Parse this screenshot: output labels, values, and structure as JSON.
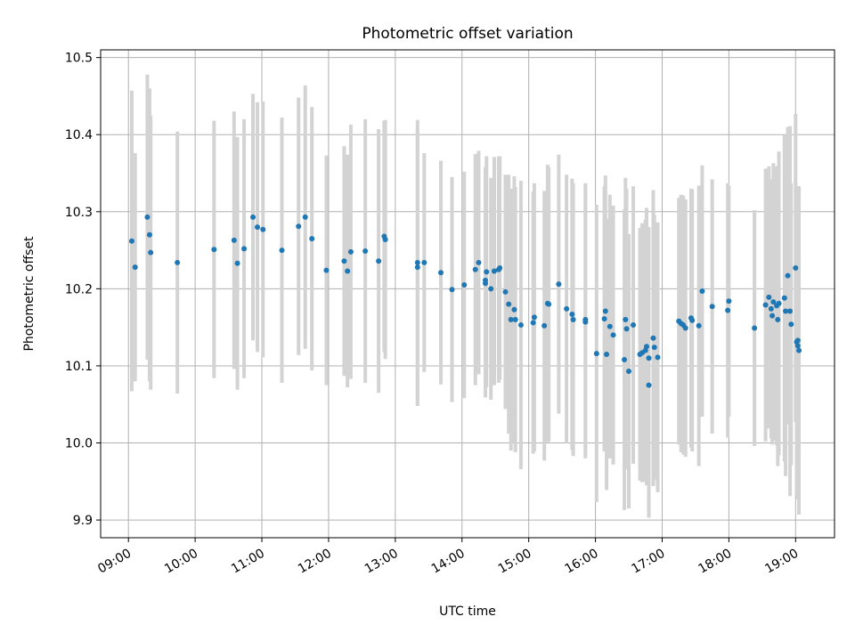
{
  "chart_data": {
    "type": "scatter",
    "title": "Photometric offset variation",
    "xlabel": "UTC time",
    "ylabel": "Photometric offset",
    "x_tick_labels": [
      "09:00",
      "10:00",
      "11:00",
      "12:00",
      "13:00",
      "14:00",
      "15:00",
      "16:00",
      "17:00",
      "18:00",
      "19:00"
    ],
    "y_tick_labels": [
      "9.9",
      "10.0",
      "10.1",
      "10.2",
      "10.3",
      "10.4",
      "10.5"
    ],
    "xlim": [
      "08:35",
      "19:35"
    ],
    "ylim": [
      9.877,
      10.51
    ],
    "grid": true,
    "marker_color": "#1f77b4",
    "errorbar_color": "#d3d3d3",
    "series": [
      {
        "x": [
          "09:03",
          "09:06",
          "09:17",
          "09:19",
          "09:20",
          "09:44",
          "10:17",
          "10:35",
          "10:38",
          "10:44",
          "10:52",
          "10:56",
          "11:01",
          "11:18",
          "11:33",
          "11:39",
          "11:45",
          "11:58",
          "12:14",
          "12:17",
          "12:20",
          "12:33",
          "12:45",
          "12:50",
          "12:51",
          "13:20",
          "13:20",
          "13:26",
          "13:41",
          "13:51",
          "14:02",
          "14:12",
          "14:15",
          "14:21",
          "14:21",
          "14:22",
          "14:26",
          "14:29",
          "14:33",
          "14:34",
          "14:39",
          "14:42",
          "14:44",
          "14:47",
          "14:48",
          "14:53",
          "15:04",
          "15:05",
          "15:14",
          "15:17",
          "15:18",
          "15:27",
          "15:34",
          "15:39",
          "15:40",
          "15:51",
          "15:51",
          "16:01",
          "16:08",
          "16:09",
          "16:10",
          "16:13",
          "16:16",
          "16:26",
          "16:27",
          "16:28",
          "16:30",
          "16:34",
          "16:40",
          "16:42",
          "16:45",
          "16:46",
          "16:48",
          "16:48",
          "16:52",
          "16:53",
          "16:56",
          "17:15",
          "17:17",
          "17:19",
          "17:21",
          "17:26",
          "17:27",
          "17:33",
          "17:36",
          "17:45",
          "17:59",
          "18:00",
          "18:23",
          "18:33",
          "18:36",
          "18:38",
          "18:39",
          "18:40",
          "18:43",
          "18:44",
          "18:45",
          "18:50",
          "18:51",
          "18:53",
          "18:55",
          "18:56",
          "19:00",
          "19:01",
          "19:02",
          "19:02",
          "19:03"
        ],
        "y": [
          10.262,
          10.228,
          10.293,
          10.27,
          10.247,
          10.234,
          10.251,
          10.263,
          10.233,
          10.252,
          10.293,
          10.28,
          10.277,
          10.25,
          10.281,
          10.293,
          10.265,
          10.224,
          10.236,
          10.223,
          10.248,
          10.249,
          10.236,
          10.268,
          10.264,
          10.234,
          10.228,
          10.234,
          10.221,
          10.199,
          10.205,
          10.225,
          10.234,
          10.211,
          10.207,
          10.222,
          10.2,
          10.223,
          10.225,
          10.227,
          10.196,
          10.18,
          10.16,
          10.173,
          10.16,
          10.153,
          10.156,
          10.163,
          10.152,
          10.181,
          10.18,
          10.206,
          10.174,
          10.167,
          10.16,
          10.16,
          10.157,
          10.116,
          10.161,
          10.171,
          10.115,
          10.151,
          10.14,
          10.108,
          10.16,
          10.148,
          10.093,
          10.153,
          10.115,
          10.117,
          10.12,
          10.125,
          10.075,
          10.11,
          10.136,
          10.124,
          10.111,
          10.158,
          10.155,
          10.153,
          10.149,
          10.162,
          10.159,
          10.152,
          10.197,
          10.177,
          10.172,
          10.184,
          10.149,
          10.179,
          10.189,
          10.174,
          10.165,
          10.183,
          10.178,
          10.16,
          10.181,
          10.188,
          10.171,
          10.217,
          10.171,
          10.154,
          10.227,
          10.131,
          10.133,
          10.126,
          10.12
        ],
        "err": [
          0.195,
          0.148,
          0.185,
          0.19,
          0.178,
          0.17,
          0.167,
          0.167,
          0.164,
          0.168,
          0.16,
          0.162,
          0.166,
          0.172,
          0.167,
          0.171,
          0.171,
          0.149,
          0.149,
          0.151,
          0.165,
          0.171,
          0.171,
          0.15,
          0.155,
          0.185,
          0.18,
          0.142,
          0.145,
          0.146,
          0.147,
          0.15,
          0.145,
          0.147,
          0.148,
          0.15,
          0.144,
          0.148,
          0.147,
          0.145,
          0.152,
          0.168,
          0.17,
          0.173,
          0.172,
          0.187,
          0.17,
          0.174,
          0.175,
          0.18,
          0.178,
          0.168,
          0.174,
          0.176,
          0.177,
          0.177,
          0.177,
          0.193,
          0.172,
          0.176,
          0.176,
          0.171,
          0.168,
          0.195,
          0.184,
          0.182,
          0.178,
          0.18,
          0.164,
          0.168,
          0.17,
          0.18,
          0.172,
          0.17,
          0.192,
          0.172,
          0.175,
          0.16,
          0.167,
          0.168,
          0.167,
          0.168,
          0.17,
          0.182,
          0.163,
          0.165,
          0.165,
          0.15,
          0.153,
          0.177,
          0.17,
          0.168,
          0.167,
          0.18,
          0.181,
          0.19,
          0.197,
          0.212,
          0.214,
          0.193,
          0.24,
          0.183,
          0.2,
          0.199,
          0.2,
          0.199,
          0.213
        ]
      }
    ]
  }
}
